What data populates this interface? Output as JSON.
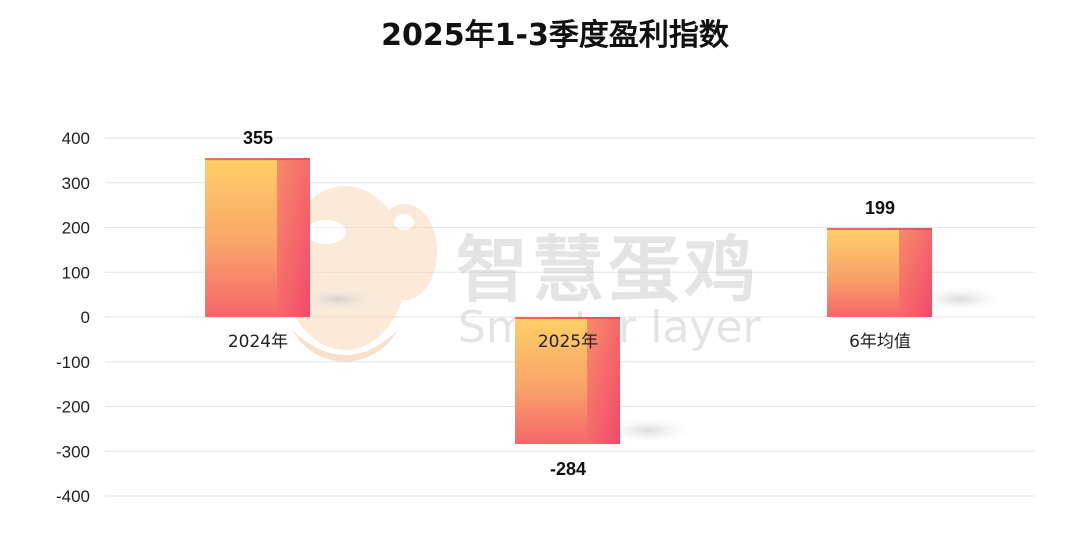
{
  "chart_data": {
    "type": "bar",
    "title": "2025年1-3季度盈利指数",
    "categories": [
      "2024年",
      "2025年",
      "6年均值"
    ],
    "values": [
      355,
      -284,
      199
    ],
    "ylim": [
      -400,
      400
    ],
    "yticks": [
      400,
      300,
      200,
      100,
      0,
      -100,
      -200,
      -300,
      -400
    ],
    "ytick_labels": [
      "400",
      "300",
      "200",
      "100",
      "0",
      "-100",
      "-200",
      "-300",
      "-400"
    ],
    "value_labels": [
      "355",
      "-284",
      "199"
    ],
    "grid": true,
    "legend": "none",
    "colors": {
      "bar_top": "#FFD066",
      "bar_bottom": "#F5566A",
      "bar_side": "#F26A6A",
      "grid": "#e6e6e6"
    }
  },
  "watermark": {
    "text_cn": "智慧蛋鸡",
    "text_en": "Smarter layer"
  }
}
